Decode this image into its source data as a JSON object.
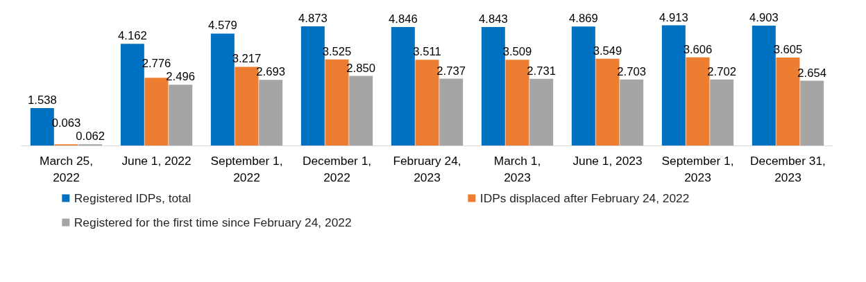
{
  "chart_data": {
    "type": "bar",
    "categories": [
      "March 25, 2022",
      "June 1, 2022",
      "September 1, 2022",
      "December 1, 2022",
      "February 24, 2023",
      "March 1, 2023",
      "June 1, 2023",
      "September 1, 2023",
      "December 31, 2023"
    ],
    "series": [
      {
        "name": "Registered IDPs, total",
        "color": "#0070c0",
        "values": [
          1.538,
          4.162,
          4.579,
          4.873,
          4.846,
          4.843,
          4.869,
          4.913,
          4.903
        ],
        "value_labels": [
          "1.538",
          "4.162",
          "4.579",
          "4.873",
          "4.846",
          "4.843",
          "4.869",
          "4.913",
          "4.903"
        ]
      },
      {
        "name": "IDPs displaced after February 24, 2022",
        "color": "#ed7d31",
        "values": [
          0.063,
          2.776,
          3.217,
          3.525,
          3.511,
          3.509,
          3.549,
          3.606,
          3.605
        ],
        "value_labels": [
          "0.063",
          "2.776",
          "3.217",
          "3.525",
          "3.511",
          "3.509",
          "3.549",
          "3.606",
          "3.605"
        ]
      },
      {
        "name": "Registered for the first time since February 24, 2022",
        "color": "#a5a5a5",
        "values": [
          0.062,
          2.496,
          2.693,
          2.85,
          2.737,
          2.731,
          2.703,
          2.702,
          2.654
        ],
        "value_labels": [
          "0.062",
          "2.496",
          "2.693",
          "2.850",
          "2.737",
          "2.731",
          "2.703",
          "2.702",
          "2.654"
        ]
      }
    ],
    "legend": "bottom"
  }
}
